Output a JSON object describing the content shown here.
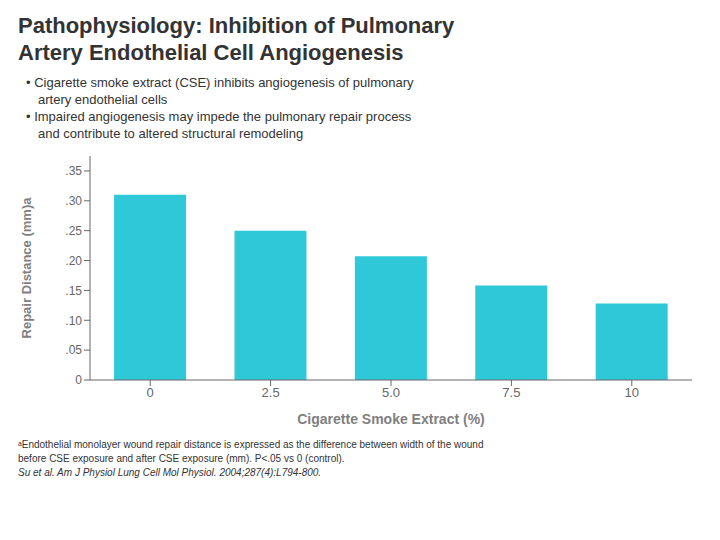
{
  "chart_data": {
    "type": "bar",
    "title": [
      "Pathophysiology: Inhibition of Pulmonary",
      "Artery Endothelial Cell Angiogenesis"
    ],
    "subtitle": [
      "• Cigarette smoke extract (CSE) inhibits angiogenesis of pulmonary",
      "artery endothelial cells",
      "• Impaired angiogenesis may impede the pulmonary repair process",
      "and contribute to altered structural remodeling"
    ],
    "annotations": [
      "ᵃEndothelial monolayer wound repair distance is expressed as the difference between width of the wound",
      "before CSE exposure and after CSE exposure (mm). P<.05 vs 0 (control).",
      "Su et al. Am J Physiol Lung Cell Mol Physiol. 2004;287(4):L794-800."
    ],
    "categories": [
      "0",
      "2.5",
      "5.0",
      "7.5",
      "10"
    ],
    "values": [
      0.31,
      0.25,
      0.207,
      0.158,
      0.128
    ],
    "color": "#2EC8D8",
    "xlabel": "Cigarette Smoke Extract (%)",
    "ylabel": "Repair Distance (mm)a",
    "ylim": [
      0,
      0.375
    ],
    "yticks": [
      0,
      {
        "value": 0.05,
        "label": ".05"
      },
      {
        "value": 0.1,
        "label": ".10"
      },
      {
        "value": 0.15,
        "label": ".15"
      },
      {
        "value": 0.2,
        "label": ".20"
      },
      {
        "value": 0.25,
        "label": ".25"
      },
      {
        "value": 0.3,
        "label": ".30"
      },
      {
        "value": 0.35,
        "label": ".35"
      }
    ],
    "grid": false
  }
}
